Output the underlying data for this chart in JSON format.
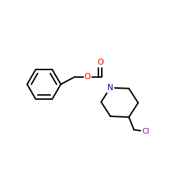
{
  "background_color": "#ffffff",
  "atom_colors": {
    "O": "#ff0000",
    "N": "#0000cc",
    "Cl": "#7b00c8",
    "C": "#000000"
  },
  "bond_color": "#000000",
  "bond_width": 1.5,
  "font_size_atoms": 8.5
}
